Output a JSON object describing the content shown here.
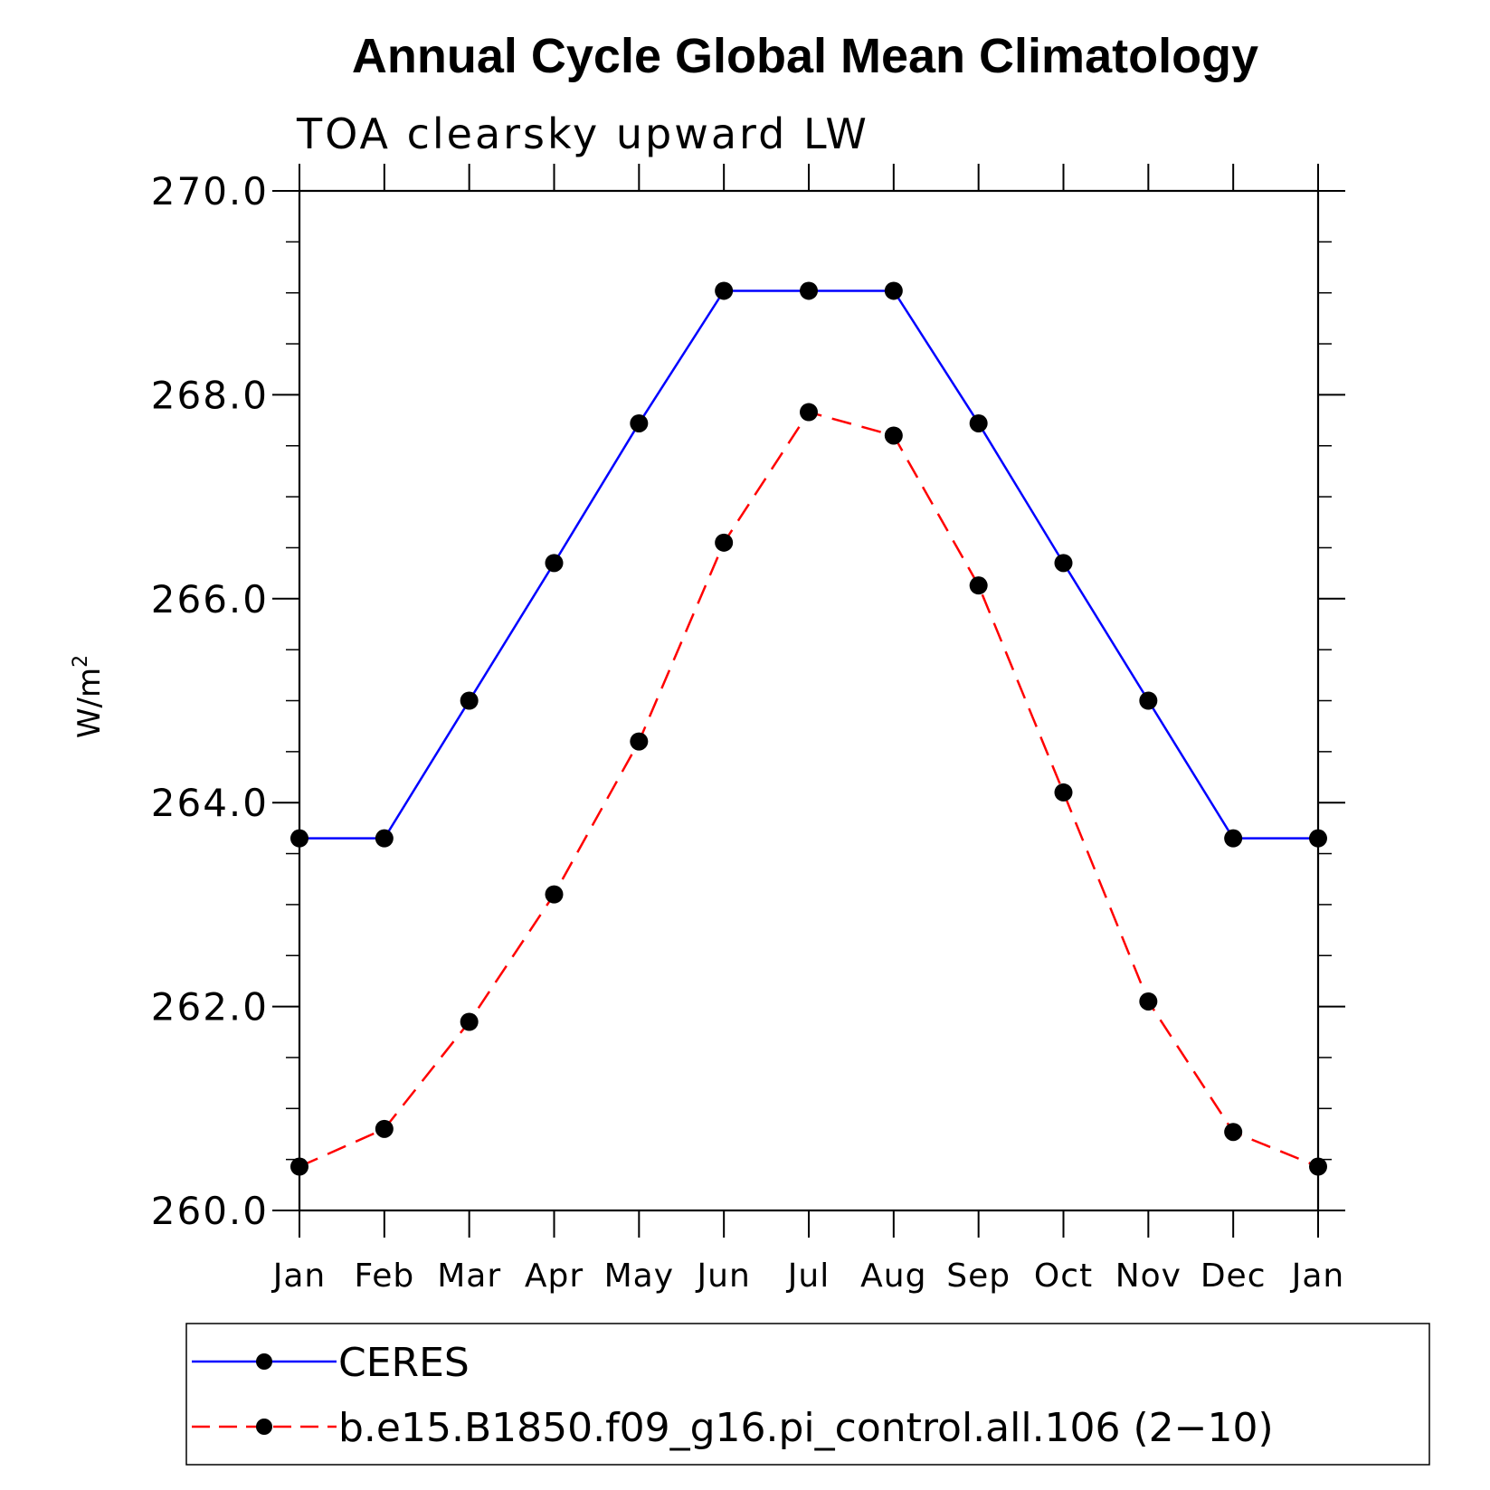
{
  "chart_data": {
    "type": "line",
    "title": "Annual Cycle Global Mean Climatology",
    "subtitle": "TOA clearsky upward LW",
    "ylabel_base": "W/m",
    "ylabel_sup": "2",
    "xlabel": "",
    "categories": [
      "Jan",
      "Feb",
      "Mar",
      "Apr",
      "May",
      "Jun",
      "Jul",
      "Aug",
      "Sep",
      "Oct",
      "Nov",
      "Dec",
      "Jan"
    ],
    "ylim": [
      260.0,
      270.0
    ],
    "yticks": [
      "260.0",
      "262.0",
      "264.0",
      "266.0",
      "268.0",
      "270.0"
    ],
    "grid": false,
    "legend_position": "bottom",
    "series": [
      {
        "name": "CERES",
        "color": "#0000ff",
        "style": "solid",
        "marker": "filled-circle",
        "values": [
          263.65,
          263.65,
          265.0,
          266.35,
          267.72,
          269.02,
          269.02,
          269.02,
          267.72,
          266.35,
          265.0,
          263.65,
          263.65
        ]
      },
      {
        "name": "b.e15.B1850.f09_g16.pi_control.all.106 (2−10)",
        "color": "#ff0000",
        "style": "dashed",
        "marker": "filled-circle",
        "values": [
          260.43,
          260.8,
          261.85,
          263.1,
          264.6,
          266.55,
          267.83,
          267.6,
          266.13,
          264.1,
          262.05,
          260.77,
          260.43
        ]
      }
    ]
  }
}
